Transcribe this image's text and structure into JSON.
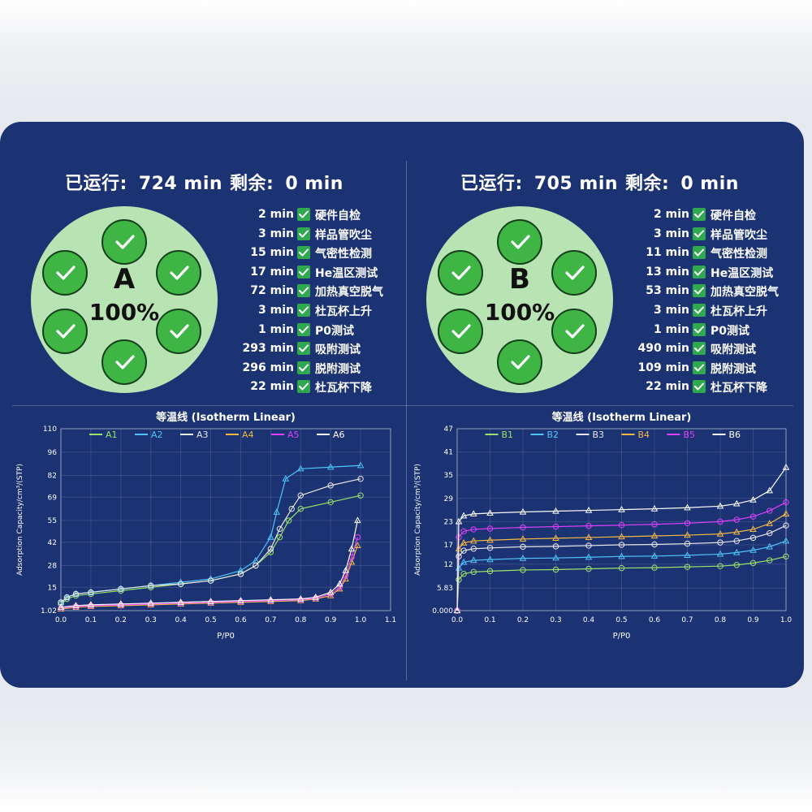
{
  "stations": [
    {
      "id": "A",
      "elapsed_label": "已运行:",
      "elapsed_value": "724 min",
      "remaining_label": "剩余:",
      "remaining_value": "0 min",
      "letter": "A",
      "percent": "100%",
      "steps": [
        {
          "duration": "2 min",
          "name": "硬件自检"
        },
        {
          "duration": "3 min",
          "name": "样品管吹尘"
        },
        {
          "duration": "15 min",
          "name": "气密性检测"
        },
        {
          "duration": "17 min",
          "name": "He温区测试"
        },
        {
          "duration": "72 min",
          "name": "加热真空脱气"
        },
        {
          "duration": "3 min",
          "name": "杜瓦杯上升"
        },
        {
          "duration": "1 min",
          "name": "P0测试"
        },
        {
          "duration": "293 min",
          "name": "吸附测试"
        },
        {
          "duration": "296 min",
          "name": "脱附测试"
        },
        {
          "duration": "22 min",
          "name": "杜瓦杯下降"
        }
      ]
    },
    {
      "id": "B",
      "elapsed_label": "已运行:",
      "elapsed_value": "705 min",
      "remaining_label": "剩余:",
      "remaining_value": "0 min",
      "letter": "B",
      "percent": "100%",
      "steps": [
        {
          "duration": "2 min",
          "name": "硬件自检"
        },
        {
          "duration": "3 min",
          "name": "样品管吹尘"
        },
        {
          "duration": "11 min",
          "name": "气密性检测"
        },
        {
          "duration": "13 min",
          "name": "He温区测试"
        },
        {
          "duration": "53 min",
          "name": "加热真空脱气"
        },
        {
          "duration": "3 min",
          "name": "杜瓦杯上升"
        },
        {
          "duration": "1 min",
          "name": "P0测试"
        },
        {
          "duration": "490 min",
          "name": "吸附测试"
        },
        {
          "duration": "109 min",
          "name": "脱附测试"
        },
        {
          "duration": "22 min",
          "name": "杜瓦杯下降"
        }
      ]
    }
  ],
  "colors": {
    "panel_bg": "#1b3273",
    "dish_bg": "#b8e3b2",
    "well_fill": "#3fb546",
    "check_green": "#2fa84f"
  },
  "well_icon": "check-icon",
  "chart_data": [
    {
      "type": "line",
      "title": "等温线 (Isotherm Linear)",
      "xlabel": "P/P0",
      "ylabel": "Adsorption Capacity/cm³/(STP)",
      "xlim": [
        0,
        1.1
      ],
      "ylim": [
        1.02,
        110
      ],
      "x_ticks": [
        "0.0",
        "0.1",
        "0.2",
        "0.3",
        "0.4",
        "0.5",
        "0.6",
        "0.7",
        "0.8",
        "0.9",
        "1.0",
        "1.1"
      ],
      "y_ticks": [
        1.02,
        15,
        28,
        42,
        55,
        69,
        82,
        96,
        110
      ],
      "y_tick_labels": [
        "1.02",
        "15",
        "28",
        "42",
        "55",
        "69",
        "82",
        "96",
        "110"
      ],
      "grid": true,
      "legend_position": "top",
      "series": [
        {
          "name": "A1",
          "color": "#9be06a",
          "x": [
            0.0,
            0.02,
            0.05,
            0.1,
            0.2,
            0.3,
            0.4,
            0.5,
            0.6,
            0.65,
            0.7,
            0.73,
            0.76,
            0.8,
            0.9,
            1.0
          ],
          "y": [
            5,
            8,
            10,
            11,
            13,
            15,
            17,
            19,
            23,
            28,
            36,
            45,
            55,
            62,
            66,
            70
          ]
        },
        {
          "name": "A2",
          "color": "#4fc3f7",
          "x": [
            0.0,
            0.02,
            0.05,
            0.1,
            0.2,
            0.3,
            0.4,
            0.5,
            0.6,
            0.65,
            0.7,
            0.72,
            0.75,
            0.8,
            0.9,
            1.0
          ],
          "y": [
            6,
            9,
            11,
            12,
            14,
            16,
            18,
            20,
            25,
            31,
            45,
            60,
            80,
            86,
            87,
            88
          ]
        },
        {
          "name": "A3",
          "color": "#e8e8e8",
          "x": [
            0.0,
            0.02,
            0.05,
            0.1,
            0.2,
            0.3,
            0.4,
            0.5,
            0.6,
            0.65,
            0.7,
            0.73,
            0.77,
            0.8,
            0.9,
            1.0
          ],
          "y": [
            6,
            9,
            11,
            12,
            14,
            16,
            17,
            19,
            23,
            28,
            38,
            50,
            62,
            70,
            76,
            80
          ]
        },
        {
          "name": "A4",
          "color": "#f5b942",
          "x": [
            0.0,
            0.05,
            0.1,
            0.2,
            0.3,
            0.4,
            0.5,
            0.6,
            0.7,
            0.8,
            0.85,
            0.9,
            0.93,
            0.95,
            0.97,
            0.99
          ],
          "y": [
            2,
            3,
            3.5,
            4,
            4.5,
            5,
            5.5,
            6,
            6.5,
            7,
            8,
            10,
            14,
            20,
            30,
            40
          ]
        },
        {
          "name": "A5",
          "color": "#e040fb",
          "x": [
            0.0,
            0.05,
            0.1,
            0.2,
            0.3,
            0.4,
            0.5,
            0.6,
            0.7,
            0.8,
            0.85,
            0.9,
            0.93,
            0.95,
            0.97,
            0.99
          ],
          "y": [
            2.5,
            3.5,
            4,
            4.5,
            5,
            5.5,
            6,
            6.5,
            7,
            7.5,
            8.5,
            11,
            15,
            22,
            33,
            45
          ]
        },
        {
          "name": "A6",
          "color": "#ffffff",
          "x": [
            0.0,
            0.05,
            0.1,
            0.2,
            0.3,
            0.4,
            0.5,
            0.6,
            0.7,
            0.8,
            0.85,
            0.9,
            0.93,
            0.95,
            0.97,
            0.99
          ],
          "y": [
            3,
            4,
            4.5,
            5,
            5.5,
            6,
            6.5,
            7,
            7.5,
            8,
            9,
            12,
            17,
            25,
            38,
            55
          ]
        }
      ]
    },
    {
      "type": "line",
      "title": "等温线 (Isotherm Linear)",
      "xlabel": "P/P0",
      "ylabel": "Adsorption Capacity/cm³/(STP)",
      "xlim": [
        0,
        1.0
      ],
      "ylim": [
        0.0,
        47
      ],
      "x_ticks": [
        "0.0",
        "0.1",
        "0.2",
        "0.3",
        "0.4",
        "0.5",
        "0.6",
        "0.7",
        "0.8",
        "0.9",
        "1.0"
      ],
      "y_ticks": [
        0.0,
        5.83,
        12,
        17,
        23,
        29,
        35,
        41,
        47
      ],
      "y_tick_labels": [
        "0.000",
        "5.83",
        "12",
        "17",
        "23",
        "29",
        "35",
        "41",
        "47"
      ],
      "grid": true,
      "legend_position": "top",
      "series": [
        {
          "name": "B1",
          "color": "#9be06a",
          "x": [
            0.0,
            0.005,
            0.02,
            0.05,
            0.1,
            0.2,
            0.3,
            0.4,
            0.5,
            0.6,
            0.7,
            0.8,
            0.85,
            0.9,
            0.95,
            1.0
          ],
          "y": [
            0,
            8,
            9.5,
            10,
            10.2,
            10.5,
            10.6,
            10.8,
            11,
            11.1,
            11.3,
            11.5,
            11.8,
            12.3,
            13,
            14
          ]
        },
        {
          "name": "B2",
          "color": "#4fc3f7",
          "x": [
            0.0,
            0.005,
            0.02,
            0.05,
            0.1,
            0.2,
            0.3,
            0.4,
            0.5,
            0.6,
            0.7,
            0.8,
            0.85,
            0.9,
            0.95,
            1.0
          ],
          "y": [
            0,
            11,
            12.5,
            13,
            13.2,
            13.5,
            13.6,
            13.8,
            14,
            14.1,
            14.3,
            14.6,
            15,
            15.6,
            16.5,
            18
          ]
        },
        {
          "name": "B3",
          "color": "#e8e8e8",
          "x": [
            0.0,
            0.005,
            0.02,
            0.05,
            0.1,
            0.2,
            0.3,
            0.4,
            0.5,
            0.6,
            0.7,
            0.8,
            0.85,
            0.9,
            0.95,
            1.0
          ],
          "y": [
            0,
            14,
            15.5,
            16,
            16.2,
            16.5,
            16.6,
            16.8,
            17,
            17.1,
            17.3,
            17.6,
            18,
            18.8,
            20,
            22
          ]
        },
        {
          "name": "B4",
          "color": "#f5b942",
          "x": [
            0.0,
            0.005,
            0.02,
            0.05,
            0.1,
            0.2,
            0.3,
            0.4,
            0.5,
            0.6,
            0.7,
            0.8,
            0.85,
            0.9,
            0.95,
            1.0
          ],
          "y": [
            0,
            16,
            17.5,
            18,
            18.2,
            18.5,
            18.7,
            18.9,
            19.1,
            19.3,
            19.5,
            19.8,
            20.3,
            21,
            22.5,
            25
          ]
        },
        {
          "name": "B5",
          "color": "#e040fb",
          "x": [
            0.0,
            0.005,
            0.02,
            0.05,
            0.1,
            0.2,
            0.3,
            0.4,
            0.5,
            0.6,
            0.7,
            0.8,
            0.85,
            0.9,
            0.95,
            1.0
          ],
          "y": [
            0,
            19,
            20.5,
            21,
            21.2,
            21.5,
            21.7,
            21.9,
            22.1,
            22.3,
            22.6,
            23,
            23.5,
            24.3,
            25.8,
            28
          ]
        },
        {
          "name": "B6",
          "color": "#ffffff",
          "x": [
            0.0,
            0.005,
            0.02,
            0.05,
            0.1,
            0.2,
            0.3,
            0.4,
            0.5,
            0.6,
            0.7,
            0.8,
            0.85,
            0.9,
            0.95,
            1.0
          ],
          "y": [
            0,
            23,
            24.5,
            25,
            25.2,
            25.5,
            25.7,
            25.9,
            26.1,
            26.3,
            26.6,
            27,
            27.6,
            28.6,
            31,
            37
          ]
        }
      ]
    }
  ]
}
